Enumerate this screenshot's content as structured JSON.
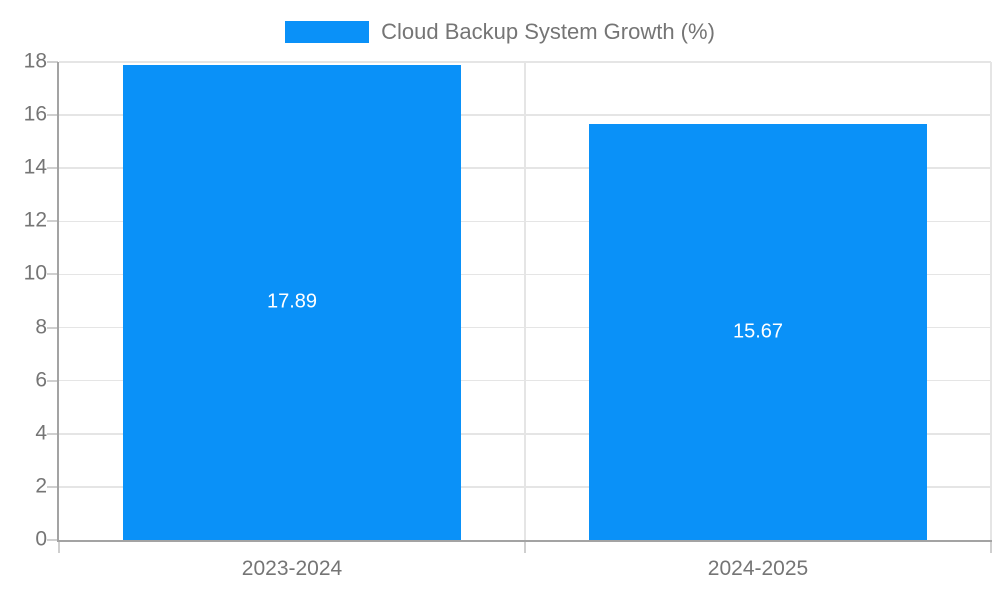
{
  "chart_data": {
    "type": "bar",
    "title": "Cloud Backup System Growth (%)",
    "legend": {
      "position": "top-center",
      "entries": [
        "Cloud Backup System Growth (%)"
      ]
    },
    "categories": [
      "2023-2024",
      "2024-2025"
    ],
    "values": [
      17.89,
      15.67
    ],
    "value_labels": [
      "17.89",
      "15.67"
    ],
    "xlabel": "",
    "ylabel": "",
    "ylim": [
      0,
      18
    ],
    "y_ticks": [
      0,
      2,
      4,
      6,
      8,
      10,
      12,
      14,
      16,
      18
    ],
    "grid": "horizontal gridlines at each y tick, vertical lines at category boundaries",
    "colors": {
      "bar": "#0a91f8",
      "bar_label_text": "#ffffff",
      "axis_text": "#757575",
      "gridline": "#e5e5e5",
      "tick_mark": "#cfcfcf",
      "axis_line": "#a3a3a3",
      "background": "#ffffff"
    }
  }
}
